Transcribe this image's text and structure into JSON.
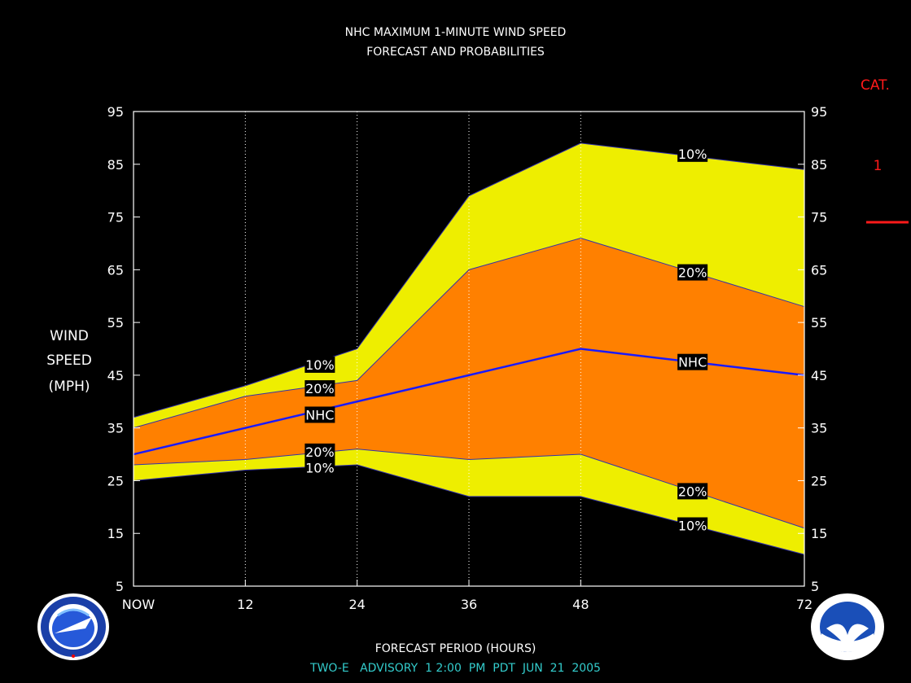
{
  "chart_data": {
    "type": "area",
    "title": "NHC MAXIMUM 1-MINUTE WIND SPEED",
    "subtitle": "FORECAST AND PROBABILITIES",
    "ylabel_lines": [
      "WIND",
      "SPEED",
      "(MPH)"
    ],
    "xlabel": "FORECAST PERIOD (HOURS)",
    "ylim": [
      5,
      95
    ],
    "yticks": [
      5,
      15,
      25,
      35,
      45,
      55,
      65,
      75,
      85,
      95
    ],
    "xlim": [
      0,
      72
    ],
    "xticks": [
      0,
      12,
      24,
      36,
      48,
      72
    ],
    "xtick_labels": [
      "NOW",
      "12",
      "24",
      "36",
      "48",
      "72"
    ],
    "x": [
      0,
      12,
      24,
      36,
      48,
      72
    ],
    "series": [
      {
        "name": "10%",
        "band": "upper",
        "values": [
          37,
          43,
          50,
          79,
          89,
          84
        ]
      },
      {
        "name": "20%",
        "band": "upper",
        "values": [
          35,
          41,
          44,
          65,
          71,
          58
        ]
      },
      {
        "name": "NHC",
        "values": [
          30,
          35,
          40,
          45,
          50,
          45
        ]
      },
      {
        "name": "20%",
        "band": "lower",
        "values": [
          28,
          29,
          31,
          29,
          30,
          16
        ]
      },
      {
        "name": "10%",
        "band": "lower",
        "values": [
          25,
          27,
          28,
          22,
          22,
          11
        ]
      }
    ],
    "series_labels": [
      {
        "text": "10%",
        "x": 20,
        "y": 47
      },
      {
        "text": "20%",
        "x": 20,
        "y": 42.5
      },
      {
        "text": "NHC",
        "x": 20,
        "y": 37.5
      },
      {
        "text": "20%",
        "x": 20,
        "y": 30.5
      },
      {
        "text": "10%",
        "x": 20,
        "y": 27.5
      },
      {
        "text": "10%",
        "x": 60,
        "y": 87
      },
      {
        "text": "20%",
        "x": 60,
        "y": 64.5
      },
      {
        "text": "NHC",
        "x": 60,
        "y": 47.5
      },
      {
        "text": "20%",
        "x": 60,
        "y": 23
      },
      {
        "text": "10%",
        "x": 60,
        "y": 16.5
      }
    ],
    "colors": {
      "outer_band": "#eeee00",
      "inner_band": "#ff8000",
      "nhc_line": "#1a1aff",
      "grid": "#ffffff"
    },
    "category_scale": {
      "header": "CAT.",
      "labels": [
        {
          "text": "1",
          "y": 85
        }
      ],
      "thresholds": [
        74
      ],
      "color": "#ff1a1a"
    }
  },
  "footer": {
    "advisory": "TWO-E   ADVISORY  1 2:00  PM  PDT  JUN  21  2005",
    "color": "#33cccc"
  },
  "logos": {
    "left": {
      "icon": "nws-logo-icon",
      "text": "NATIONAL WEATHER SERVICE"
    },
    "right": {
      "icon": "noaa-logo-icon",
      "text": "NOAA"
    }
  }
}
